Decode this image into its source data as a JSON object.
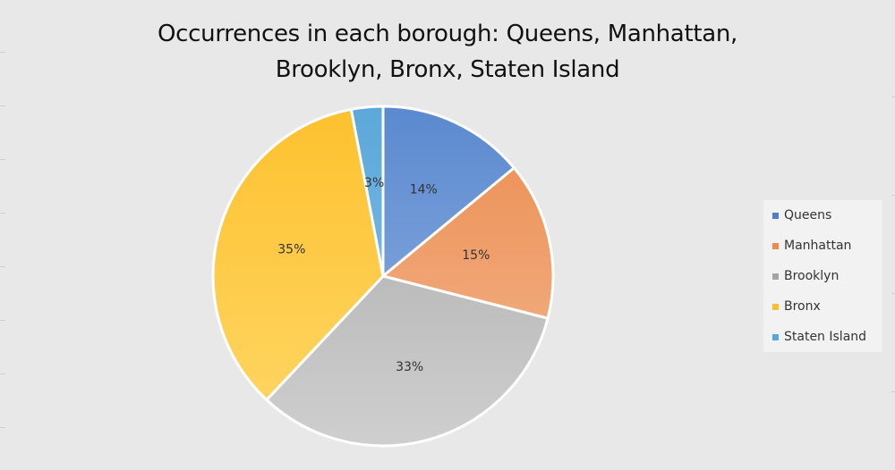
{
  "chart_data": {
    "type": "pie",
    "title_lines": [
      "Occurrences in each borough: Queens, Manhattan,",
      "Brooklyn, Bronx, Staten Island"
    ],
    "categories": [
      "Queens",
      "Manhattan",
      "Brooklyn",
      "Bronx",
      "Staten Island"
    ],
    "values": [
      14,
      15,
      33,
      35,
      3
    ],
    "value_labels": [
      "14%",
      "15%",
      "33%",
      "35%",
      "3%"
    ],
    "start_angle_deg": 0,
    "direction": "clockwise",
    "legend_position": "right",
    "colors": [
      {
        "light": "#93b3e2",
        "dark": "#5b89cf"
      },
      {
        "light": "#f4b892",
        "dark": "#ec8c4f"
      },
      {
        "light": "#cfcfcf",
        "dark": "#a8a8a8"
      },
      {
        "light": "#ffd766",
        "dark": "#fdc12f"
      },
      {
        "light": "#8ac4e8",
        "dark": "#5ba8da"
      }
    ],
    "legend_swatch_colors": [
      "#4f7fcc",
      "#ec8a4c",
      "#a5a5a5",
      "#fdbf2d",
      "#5ba6da"
    ]
  }
}
